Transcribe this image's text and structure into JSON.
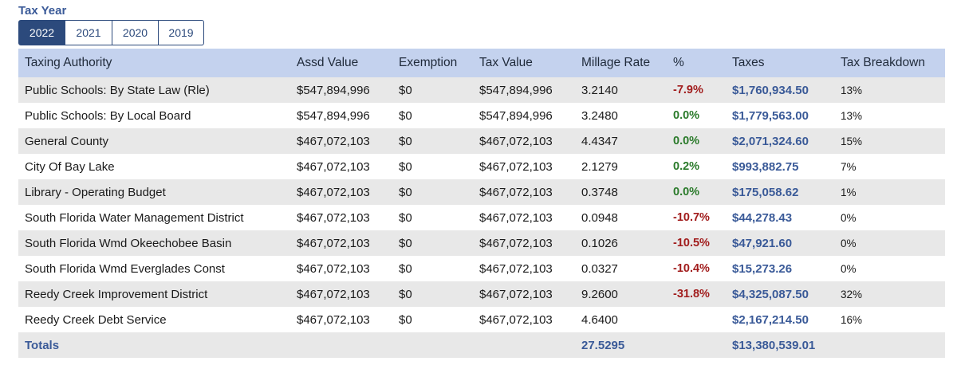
{
  "tax_year": {
    "label": "Tax Year",
    "tabs": [
      {
        "label": "2022",
        "active": true
      },
      {
        "label": "2021",
        "active": false
      },
      {
        "label": "2020",
        "active": false
      },
      {
        "label": "2019",
        "active": false
      }
    ]
  },
  "table": {
    "headers": [
      "Taxing Authority",
      "Assd Value",
      "Exemption",
      "Tax Value",
      "Millage Rate",
      "%",
      "Taxes",
      "Tax Breakdown"
    ],
    "rows": [
      {
        "authority": "Public Schools: By State Law (Rle)",
        "assd": "$547,894,996",
        "exemption": "$0",
        "tax_value": "$547,894,996",
        "millage": "3.2140",
        "pct": "-7.9%",
        "pct_sign": "neg",
        "taxes": "$1,760,934.50",
        "breakdown": "13%"
      },
      {
        "authority": "Public Schools: By Local Board",
        "assd": "$547,894,996",
        "exemption": "$0",
        "tax_value": "$547,894,996",
        "millage": "3.2480",
        "pct": "0.0%",
        "pct_sign": "pos",
        "taxes": "$1,779,563.00",
        "breakdown": "13%"
      },
      {
        "authority": "General County",
        "assd": "$467,072,103",
        "exemption": "$0",
        "tax_value": "$467,072,103",
        "millage": "4.4347",
        "pct": "0.0%",
        "pct_sign": "pos",
        "taxes": "$2,071,324.60",
        "breakdown": "15%"
      },
      {
        "authority": "City Of Bay Lake",
        "assd": "$467,072,103",
        "exemption": "$0",
        "tax_value": "$467,072,103",
        "millage": "2.1279",
        "pct": "0.2%",
        "pct_sign": "pos",
        "taxes": "$993,882.75",
        "breakdown": "7%"
      },
      {
        "authority": "Library - Operating Budget",
        "assd": "$467,072,103",
        "exemption": "$0",
        "tax_value": "$467,072,103",
        "millage": "0.3748",
        "pct": "0.0%",
        "pct_sign": "pos",
        "taxes": "$175,058.62",
        "breakdown": "1%"
      },
      {
        "authority": "South Florida Water Management District",
        "assd": "$467,072,103",
        "exemption": "$0",
        "tax_value": "$467,072,103",
        "millage": "0.0948",
        "pct": "-10.7%",
        "pct_sign": "neg",
        "taxes": "$44,278.43",
        "breakdown": "0%"
      },
      {
        "authority": "South Florida Wmd Okeechobee Basin",
        "assd": "$467,072,103",
        "exemption": "$0",
        "tax_value": "$467,072,103",
        "millage": "0.1026",
        "pct": "-10.5%",
        "pct_sign": "neg",
        "taxes": "$47,921.60",
        "breakdown": "0%"
      },
      {
        "authority": "South Florida Wmd Everglades Const",
        "assd": "$467,072,103",
        "exemption": "$0",
        "tax_value": "$467,072,103",
        "millage": "0.0327",
        "pct": "-10.4%",
        "pct_sign": "neg",
        "taxes": "$15,273.26",
        "breakdown": "0%"
      },
      {
        "authority": "Reedy Creek Improvement District",
        "assd": "$467,072,103",
        "exemption": "$0",
        "tax_value": "$467,072,103",
        "millage": "9.2600",
        "pct": "-31.8%",
        "pct_sign": "neg",
        "taxes": "$4,325,087.50",
        "breakdown": "32%"
      },
      {
        "authority": "Reedy Creek Debt Service",
        "assd": "$467,072,103",
        "exemption": "$0",
        "tax_value": "$467,072,103",
        "millage": "4.6400",
        "pct": "",
        "pct_sign": "none",
        "taxes": "$2,167,214.50",
        "breakdown": "16%"
      }
    ],
    "totals": {
      "label": "Totals",
      "millage": "27.5295",
      "taxes": "$13,380,539.01"
    }
  },
  "colors": {
    "accent": "#2c4a7c",
    "header_bg": "#c4d2ee",
    "link_blue": "#3a5a98",
    "negative": "#a11c1c",
    "positive": "#2a7a2a",
    "stripe": "#e8e8e8"
  }
}
